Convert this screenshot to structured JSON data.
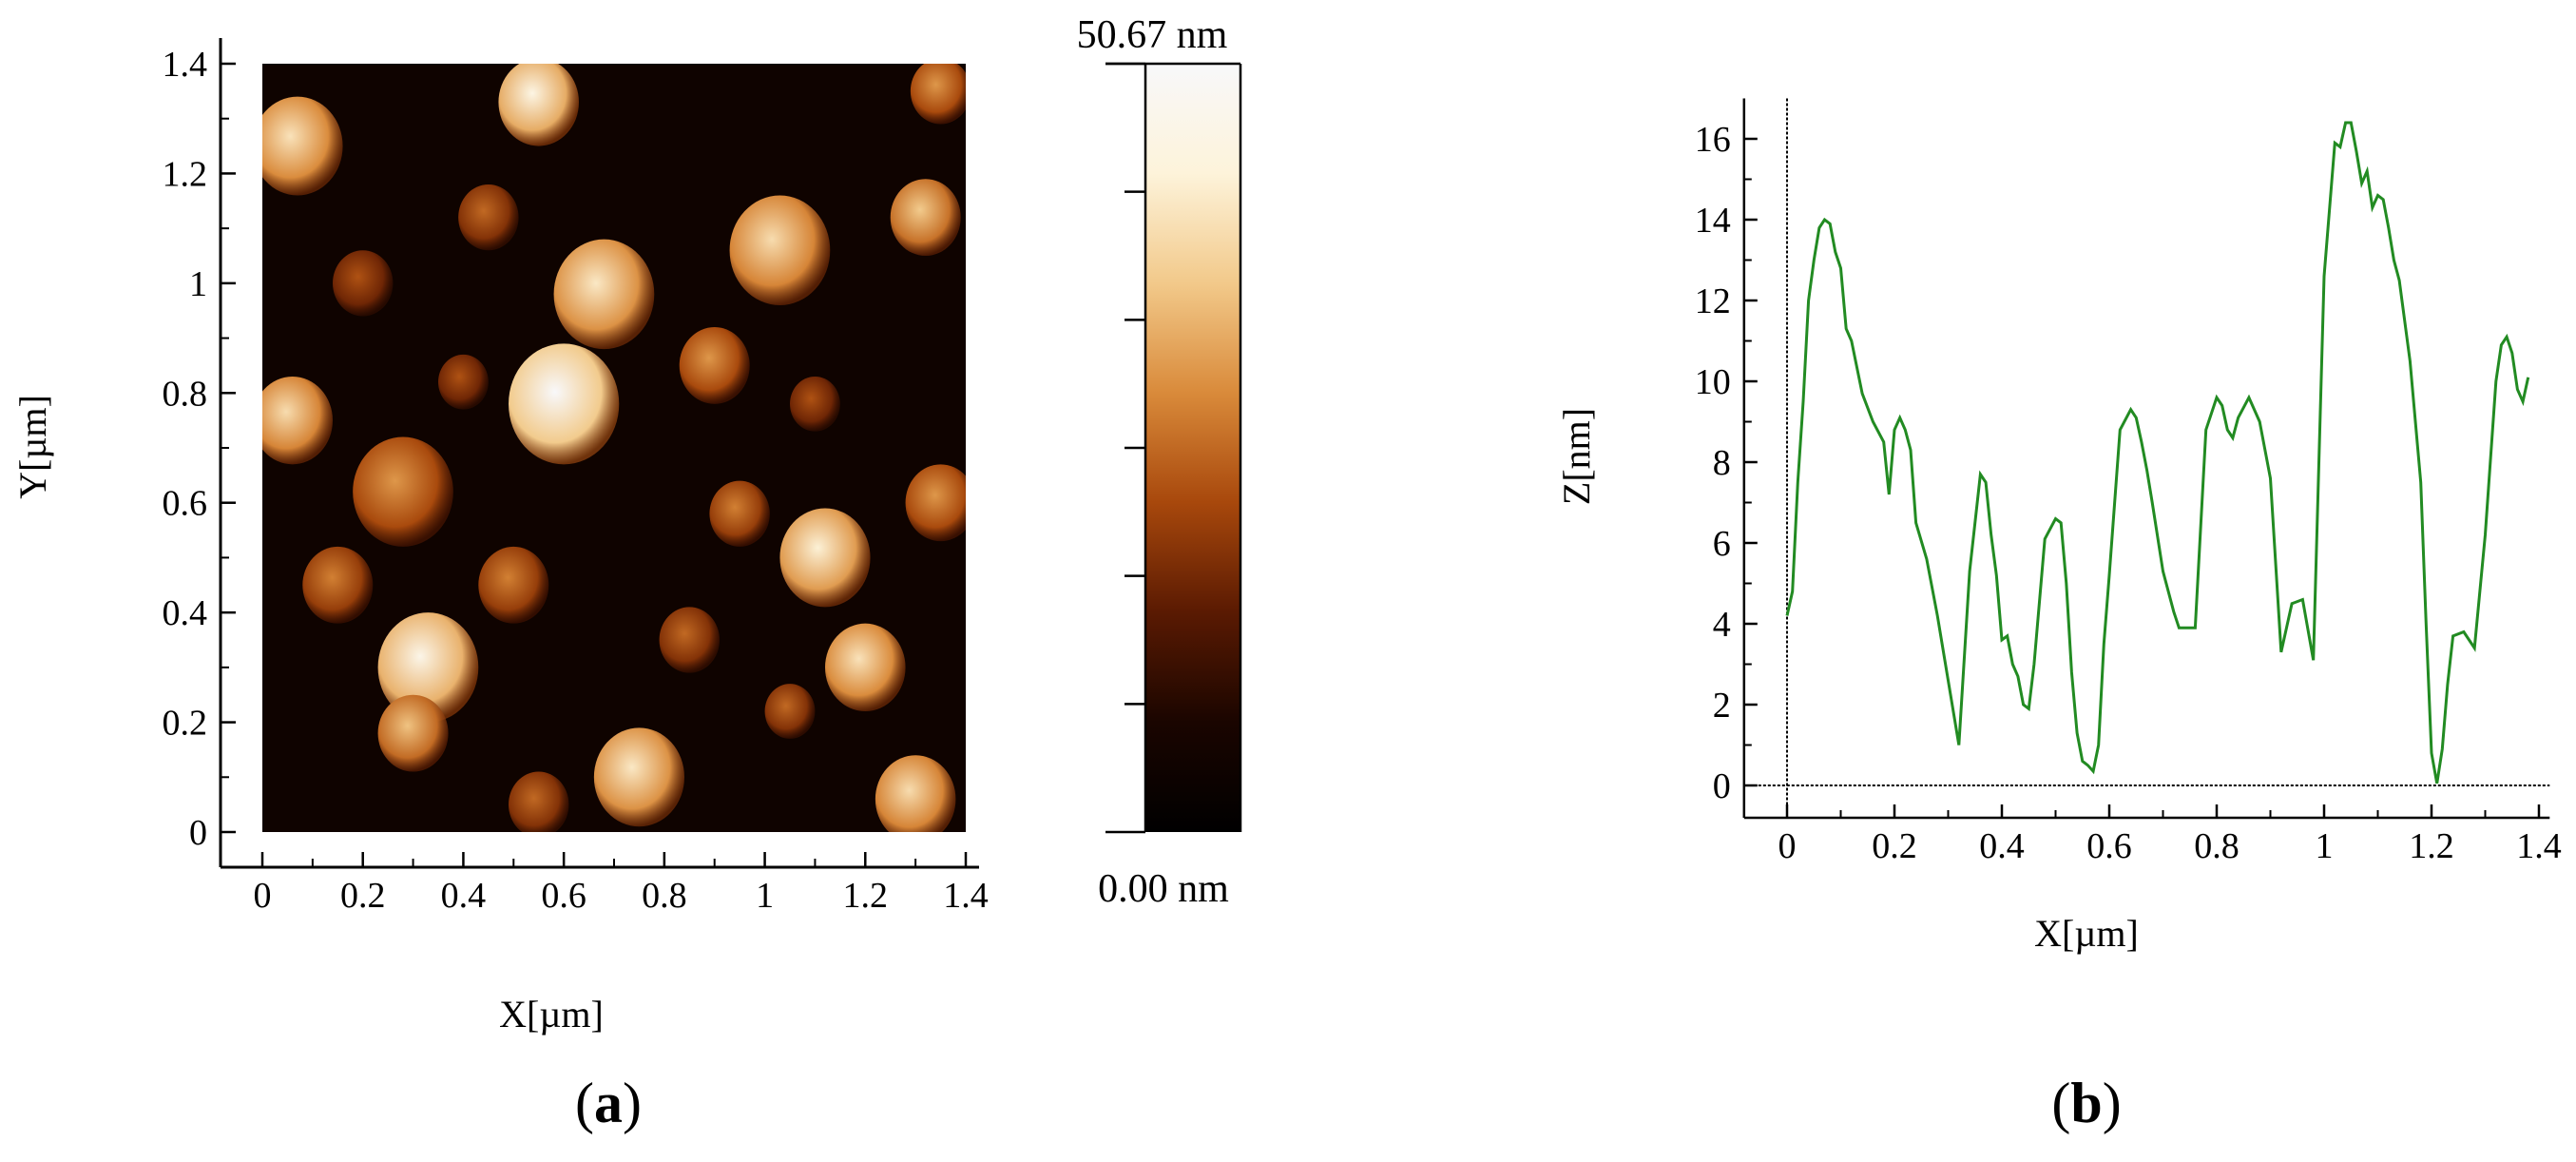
{
  "chart_data": [
    {
      "type": "heatmap",
      "panel_label": "a",
      "xlabel": "X[µm]",
      "ylabel": "Y[µm]",
      "xlim": [
        0,
        1.4
      ],
      "ylim": [
        0,
        1.4
      ],
      "xticks": [
        "0",
        "0.2",
        "0.4",
        "0.6",
        "0.8",
        "1",
        "1.2",
        "1.4"
      ],
      "yticks": [
        "0",
        "0.2",
        "0.4",
        "0.6",
        "0.8",
        "1",
        "1.2",
        "1.4"
      ],
      "colorbar": {
        "max_label": "50.67 nm",
        "min_label": "0.00 nm",
        "range": [
          0,
          50.67
        ],
        "colors": [
          "#000000",
          "#1a0500",
          "#5a1a02",
          "#a8480c",
          "#d98a3a",
          "#f2c98a",
          "#fdf3da",
          "#f8f8fa"
        ]
      },
      "grains": [
        {
          "x": 0.6,
          "y": 0.78,
          "r": 0.11,
          "z": 1.0
        },
        {
          "x": 0.55,
          "y": 1.33,
          "r": 0.08,
          "z": 0.9
        },
        {
          "x": 0.07,
          "y": 1.25,
          "r": 0.09,
          "z": 0.8
        },
        {
          "x": 0.33,
          "y": 0.3,
          "r": 0.1,
          "z": 0.92
        },
        {
          "x": 0.68,
          "y": 0.98,
          "r": 0.1,
          "z": 0.82
        },
        {
          "x": 1.03,
          "y": 1.06,
          "r": 0.1,
          "z": 0.78
        },
        {
          "x": 1.32,
          "y": 1.12,
          "r": 0.07,
          "z": 0.72
        },
        {
          "x": 1.12,
          "y": 0.5,
          "r": 0.09,
          "z": 0.85
        },
        {
          "x": 0.75,
          "y": 0.1,
          "r": 0.09,
          "z": 0.82
        },
        {
          "x": 1.2,
          "y": 0.3,
          "r": 0.08,
          "z": 0.8
        },
        {
          "x": 1.3,
          "y": 0.06,
          "r": 0.08,
          "z": 0.78
        },
        {
          "x": 0.06,
          "y": 0.75,
          "r": 0.08,
          "z": 0.78
        },
        {
          "x": 0.28,
          "y": 0.62,
          "r": 0.1,
          "z": 0.6
        },
        {
          "x": 0.3,
          "y": 0.18,
          "r": 0.07,
          "z": 0.7
        },
        {
          "x": 0.9,
          "y": 0.85,
          "r": 0.07,
          "z": 0.6
        },
        {
          "x": 0.95,
          "y": 0.58,
          "r": 0.06,
          "z": 0.55
        },
        {
          "x": 1.35,
          "y": 0.6,
          "r": 0.07,
          "z": 0.6
        },
        {
          "x": 0.5,
          "y": 0.45,
          "r": 0.07,
          "z": 0.55
        },
        {
          "x": 0.15,
          "y": 0.45,
          "r": 0.07,
          "z": 0.55
        },
        {
          "x": 0.85,
          "y": 0.35,
          "r": 0.06,
          "z": 0.5
        },
        {
          "x": 1.35,
          "y": 1.35,
          "r": 0.06,
          "z": 0.6
        },
        {
          "x": 0.2,
          "y": 1.0,
          "r": 0.06,
          "z": 0.45
        },
        {
          "x": 0.45,
          "y": 1.12,
          "r": 0.06,
          "z": 0.5
        },
        {
          "x": 0.55,
          "y": 0.05,
          "r": 0.06,
          "z": 0.5
        },
        {
          "x": 1.05,
          "y": 0.22,
          "r": 0.05,
          "z": 0.5
        },
        {
          "x": 1.1,
          "y": 0.78,
          "r": 0.05,
          "z": 0.45
        },
        {
          "x": 0.4,
          "y": 0.82,
          "r": 0.05,
          "z": 0.45
        }
      ]
    },
    {
      "type": "line",
      "panel_label": "b",
      "xlabel": "X[µm]",
      "ylabel": "Z[nm]",
      "xlim": [
        -0.08,
        1.42
      ],
      "ylim": [
        -0.8,
        17
      ],
      "xticks": [
        0,
        0.2,
        0.4,
        0.6,
        0.8,
        1,
        1.2,
        1.4
      ],
      "yticks": [
        0,
        2,
        4,
        6,
        8,
        10,
        12,
        14,
        16
      ],
      "line_color": "#228b22",
      "series": [
        {
          "x": [
            0,
            0.01,
            0.02,
            0.03,
            0.04,
            0.05,
            0.06,
            0.07,
            0.08,
            0.09,
            0.1,
            0.11,
            0.12,
            0.14,
            0.16,
            0.18,
            0.19,
            0.2,
            0.21,
            0.22,
            0.23,
            0.24,
            0.26,
            0.28,
            0.3,
            0.32,
            0.34,
            0.36,
            0.37,
            0.38,
            0.39,
            0.4,
            0.41,
            0.42,
            0.43,
            0.44,
            0.45,
            0.46,
            0.48,
            0.5,
            0.51,
            0.52,
            0.53,
            0.54,
            0.55,
            0.56,
            0.57,
            0.58,
            0.59,
            0.6,
            0.62,
            0.64,
            0.65,
            0.66,
            0.67,
            0.68,
            0.7,
            0.72,
            0.73,
            0.74,
            0.75,
            0.76,
            0.78,
            0.8,
            0.81,
            0.82,
            0.83,
            0.84,
            0.86,
            0.88,
            0.9,
            0.92,
            0.94,
            0.96,
            0.98,
            1.0,
            1.02,
            1.03,
            1.04,
            1.05,
            1.06,
            1.07,
            1.08,
            1.09,
            1.1,
            1.11,
            1.12,
            1.13,
            1.14,
            1.16,
            1.18,
            1.19,
            1.2,
            1.21,
            1.22,
            1.23,
            1.24,
            1.26,
            1.28,
            1.3,
            1.32,
            1.33,
            1.34,
            1.35,
            1.36,
            1.37,
            1.38
          ],
          "y": [
            4.2,
            4.8,
            7.5,
            9.5,
            12.0,
            13.0,
            13.8,
            14.0,
            13.9,
            13.2,
            12.8,
            11.3,
            11.0,
            9.7,
            9.0,
            8.5,
            7.2,
            8.8,
            9.1,
            8.8,
            8.3,
            6.5,
            5.6,
            4.2,
            2.6,
            1.0,
            5.3,
            7.7,
            7.5,
            6.2,
            5.2,
            3.6,
            3.7,
            3.0,
            2.7,
            2.0,
            1.9,
            3.0,
            6.1,
            6.6,
            6.5,
            5.0,
            2.8,
            1.3,
            0.6,
            0.5,
            0.35,
            1.0,
            3.5,
            5.2,
            8.8,
            9.3,
            9.1,
            8.5,
            7.8,
            7.0,
            5.3,
            4.3,
            3.9,
            3.9,
            3.9,
            3.9,
            8.8,
            9.6,
            9.4,
            8.8,
            8.6,
            9.1,
            9.6,
            9.0,
            7.6,
            3.3,
            4.5,
            4.6,
            3.1,
            12.6,
            15.9,
            15.8,
            16.4,
            16.4,
            15.7,
            14.9,
            15.2,
            14.3,
            14.6,
            14.5,
            13.8,
            13.0,
            12.5,
            10.5,
            7.5,
            4.0,
            0.8,
            0.05,
            0.9,
            2.5,
            3.7,
            3.8,
            3.4,
            6.2,
            10.0,
            10.9,
            11.1,
            10.7,
            9.8,
            9.5,
            10.1
          ]
        }
      ]
    }
  ]
}
